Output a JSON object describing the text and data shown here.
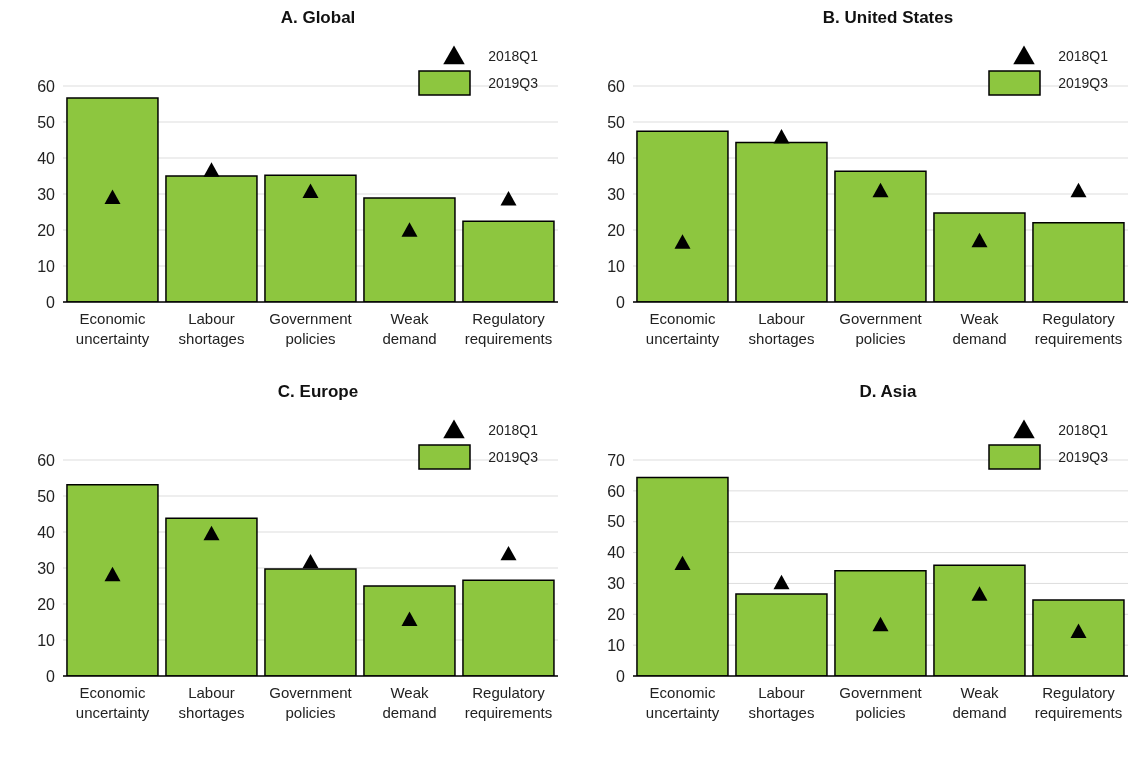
{
  "chart_data": [
    {
      "type": "bar",
      "title": "A. Global",
      "categories": [
        "Economic uncertainty",
        "Labour shortages",
        "Government policies",
        "Weak demand",
        "Regulatory requirements"
      ],
      "series": [
        {
          "name": "2018Q1",
          "type": "scatter",
          "marker": "triangle",
          "color": "#000000",
          "values": [
            29.0,
            36.6,
            30.7,
            19.9,
            28.6
          ]
        },
        {
          "name": "2019Q3",
          "type": "bar",
          "color": "#8dc63f",
          "values": [
            56.7,
            35.0,
            35.2,
            28.9,
            22.4
          ]
        }
      ],
      "ylim": [
        0,
        60
      ],
      "yticks": [
        0,
        10,
        20,
        30,
        40,
        50,
        60
      ],
      "grid": "y",
      "legend": "top right"
    },
    {
      "type": "bar",
      "title": "B. United States",
      "categories": [
        "Economic uncertainty",
        "Labour shortages",
        "Government policies",
        "Weak demand",
        "Regulatory requirements"
      ],
      "series": [
        {
          "name": "2018Q1",
          "type": "scatter",
          "marker": "triangle",
          "color": "#000000",
          "values": [
            16.6,
            45.8,
            30.9,
            17.0,
            30.9
          ]
        },
        {
          "name": "2019Q3",
          "type": "bar",
          "color": "#8dc63f",
          "values": [
            47.4,
            44.3,
            36.3,
            24.7,
            22.0
          ]
        }
      ],
      "ylim": [
        0,
        60
      ],
      "yticks": [
        0,
        10,
        20,
        30,
        40,
        50,
        60
      ],
      "grid": "y",
      "legend": "top right"
    },
    {
      "type": "bar",
      "title": "C. Europe",
      "categories": [
        "Economic uncertainty",
        "Labour shortages",
        "Government policies",
        "Weak demand",
        "Regulatory requirements"
      ],
      "series": [
        {
          "name": "2018Q1",
          "type": "scatter",
          "marker": "triangle",
          "color": "#000000",
          "values": [
            28.1,
            39.5,
            31.7,
            15.7,
            33.9
          ]
        },
        {
          "name": "2019Q3",
          "type": "bar",
          "color": "#8dc63f",
          "values": [
            53.1,
            43.8,
            29.7,
            25.0,
            26.6
          ]
        }
      ],
      "ylim": [
        0,
        60
      ],
      "yticks": [
        0,
        10,
        20,
        30,
        40,
        50,
        60
      ],
      "grid": "y",
      "legend": "top right"
    },
    {
      "type": "bar",
      "title": "D. Asia",
      "categories": [
        "Economic uncertainty",
        "Labour shortages",
        "Government policies",
        "Weak demand",
        "Regulatory requirements"
      ],
      "series": [
        {
          "name": "2018Q1",
          "type": "scatter",
          "marker": "triangle",
          "color": "#000000",
          "values": [
            36.4,
            30.2,
            16.6,
            26.5,
            14.4
          ]
        },
        {
          "name": "2019Q3",
          "type": "bar",
          "color": "#8dc63f",
          "values": [
            64.3,
            26.6,
            34.1,
            35.9,
            24.6
          ]
        }
      ],
      "ylim": [
        0,
        70
      ],
      "yticks": [
        0,
        10,
        20,
        30,
        40,
        50,
        60,
        70
      ],
      "grid": "y",
      "legend": "top right"
    }
  ]
}
